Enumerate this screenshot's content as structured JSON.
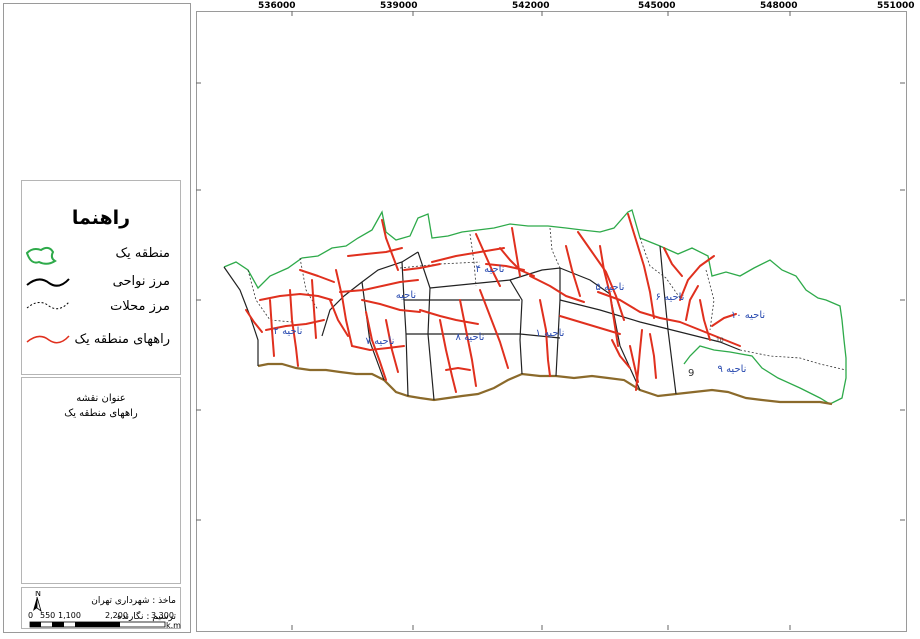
{
  "legend": {
    "title": "راهنما",
    "items": [
      {
        "label": "منطقه یک",
        "color": "#2eaa4a"
      },
      {
        "label": "مرز نواحی",
        "color": "#000000"
      },
      {
        "label": "مرز محلات",
        "color": "#000000"
      },
      {
        "label": "راههای منطقه یک",
        "color": "#e0301e"
      }
    ]
  },
  "map_title": {
    "line1": "عنوان نقشه",
    "line2": "راههای منطقه یک"
  },
  "credits": {
    "source": "ماخذ : شهرداری تهران",
    "author": "ترسیم : نگارنده"
  },
  "scale": {
    "ticks": [
      "0",
      "550",
      "1,100",
      "2,200",
      "3,300"
    ],
    "unit": "k.m",
    "north": "N"
  },
  "x_coords": [
    "536000",
    "539000",
    "542000",
    "545000",
    "548000",
    "551000"
  ],
  "regions": [
    {
      "label": "ناحیه ۲"
    },
    {
      "label": "ناحیه"
    },
    {
      "label": "ناحیه ۴"
    },
    {
      "label": "ناحیه ۵"
    },
    {
      "label": "ناحیه ۶"
    },
    {
      "label": "ناحیه ۱۰"
    },
    {
      "label": "ناحیه ۷"
    },
    {
      "label": "ناحیه ۸"
    },
    {
      "label": "ناحیه ۱"
    },
    {
      "label": "ناحیه ۹"
    },
    {
      "label": "9"
    },
    {
      "label": "10"
    }
  ],
  "colors": {
    "boundary": "#2eaa4a",
    "roads": "#e0301e",
    "south_edge": "#8b6a2b",
    "labels": "#2a4bb0"
  }
}
